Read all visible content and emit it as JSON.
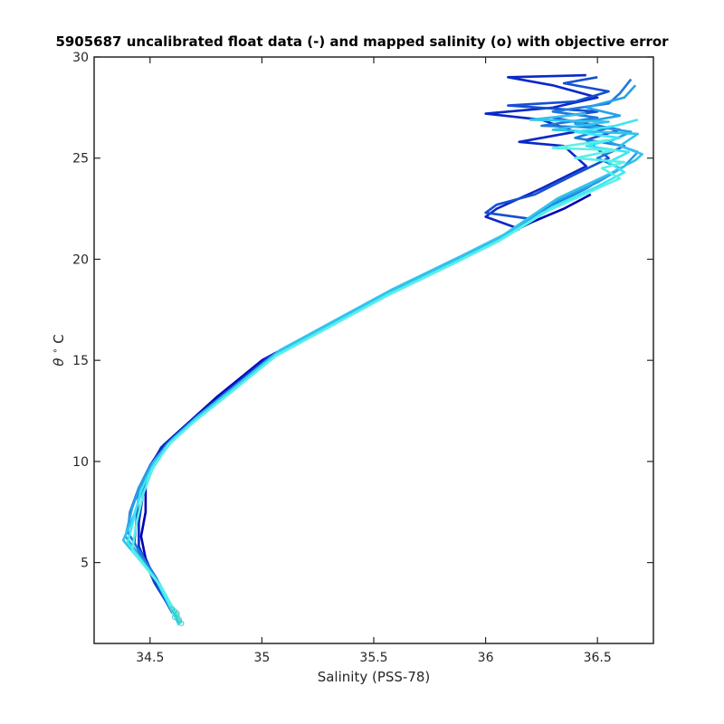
{
  "chart_data": {
    "type": "line",
    "title": "5905687 uncalibrated float data (-) and mapped salinity (o) with objective error",
    "xlabel": "Salinity (PSS-78)",
    "ylabel_symbol": "θ",
    "ylabel_unit": "C",
    "xlim": [
      34.25,
      36.75
    ],
    "ylim": [
      1,
      30
    ],
    "xticks": [
      34.5,
      35,
      35.5,
      36,
      36.5
    ],
    "xtick_labels": [
      "34.5",
      "35",
      "35.5",
      "36",
      "36.5"
    ],
    "yticks": [
      5,
      10,
      15,
      20,
      25,
      30
    ],
    "ytick_labels": [
      "5",
      "10",
      "15",
      "20",
      "25",
      "30"
    ],
    "grid": false,
    "colormap": [
      "#0000c8",
      "#0a3ccd",
      "#1478dc",
      "#1e96e6",
      "#28b4eb",
      "#32d2f0",
      "#3ceef5",
      "#50f0e6"
    ],
    "series": [
      {
        "color": "#0000b4",
        "points": [
          [
            34.63,
            2.0
          ],
          [
            34.55,
            3.5
          ],
          [
            34.48,
            5.2
          ],
          [
            34.46,
            6.3
          ],
          [
            34.48,
            7.5
          ],
          [
            34.48,
            8.7
          ],
          [
            34.5,
            9.8
          ],
          [
            34.56,
            10.8
          ],
          [
            34.65,
            11.7
          ],
          [
            34.8,
            13.2
          ],
          [
            35.0,
            15.0
          ],
          [
            35.25,
            16.5
          ],
          [
            35.5,
            18.0
          ],
          [
            35.8,
            19.6
          ],
          [
            36.0,
            20.7
          ],
          [
            36.2,
            21.8
          ],
          [
            36.35,
            22.5
          ],
          [
            36.47,
            23.2
          ]
        ]
      },
      {
        "color": "#0a28c8",
        "points": [
          [
            34.62,
            2.2
          ],
          [
            34.52,
            4.0
          ],
          [
            34.45,
            5.8
          ],
          [
            34.45,
            7.0
          ],
          [
            34.47,
            8.5
          ],
          [
            34.49,
            9.5
          ],
          [
            34.55,
            10.7
          ],
          [
            34.66,
            11.8
          ],
          [
            34.82,
            13.3
          ],
          [
            35.02,
            15.1
          ],
          [
            35.27,
            16.6
          ],
          [
            35.52,
            18.1
          ],
          [
            35.82,
            19.7
          ],
          [
            36.02,
            20.8
          ],
          [
            36.15,
            21.5
          ],
          [
            36.0,
            22.1
          ],
          [
            36.05,
            22.5
          ],
          [
            36.25,
            23.5
          ],
          [
            36.45,
            24.6
          ],
          [
            36.35,
            25.6
          ],
          [
            36.15,
            25.8
          ],
          [
            36.4,
            26.3
          ],
          [
            36.25,
            26.9
          ],
          [
            36.0,
            27.2
          ],
          [
            36.3,
            27.5
          ],
          [
            36.5,
            28.0
          ],
          [
            36.3,
            28.6
          ],
          [
            36.1,
            29.0
          ],
          [
            36.45,
            29.1
          ]
        ]
      },
      {
        "color": "#1450d2",
        "points": [
          [
            34.6,
            2.5
          ],
          [
            34.5,
            4.5
          ],
          [
            34.43,
            6.0
          ],
          [
            34.44,
            7.2
          ],
          [
            34.45,
            8.5
          ],
          [
            34.5,
            9.6
          ],
          [
            34.57,
            10.8
          ],
          [
            34.68,
            11.9
          ],
          [
            34.84,
            13.4
          ],
          [
            35.04,
            15.2
          ],
          [
            35.29,
            16.7
          ],
          [
            35.54,
            18.2
          ],
          [
            35.84,
            19.8
          ],
          [
            36.04,
            20.9
          ],
          [
            36.2,
            22.0
          ],
          [
            36.0,
            22.3
          ],
          [
            36.05,
            22.7
          ],
          [
            36.22,
            23.2
          ],
          [
            36.4,
            24.2
          ],
          [
            36.55,
            25.0
          ],
          [
            36.45,
            25.9
          ],
          [
            36.6,
            26.4
          ],
          [
            36.3,
            27.0
          ],
          [
            36.5,
            27.3
          ],
          [
            36.1,
            27.6
          ],
          [
            36.4,
            27.8
          ],
          [
            36.55,
            28.3
          ],
          [
            36.35,
            28.7
          ],
          [
            36.5,
            29.0
          ]
        ]
      },
      {
        "color": "#1e78dc",
        "points": [
          [
            34.63,
            2.0
          ],
          [
            34.53,
            4.2
          ],
          [
            34.4,
            6.5
          ],
          [
            34.41,
            7.5
          ],
          [
            34.45,
            8.7
          ],
          [
            34.5,
            9.8
          ],
          [
            34.58,
            10.9
          ],
          [
            34.69,
            12.0
          ],
          [
            34.86,
            13.5
          ],
          [
            35.06,
            15.3
          ],
          [
            35.31,
            16.8
          ],
          [
            35.56,
            18.3
          ],
          [
            35.86,
            19.9
          ],
          [
            36.06,
            21.0
          ],
          [
            36.25,
            22.4
          ],
          [
            36.45,
            23.5
          ],
          [
            36.6,
            24.5
          ],
          [
            36.5,
            25.0
          ],
          [
            36.62,
            25.6
          ],
          [
            36.4,
            26.0
          ],
          [
            36.55,
            26.5
          ],
          [
            36.25,
            26.6
          ],
          [
            36.5,
            27.0
          ],
          [
            36.3,
            27.3
          ],
          [
            36.55,
            27.7
          ],
          [
            36.6,
            28.2
          ],
          [
            36.65,
            28.9
          ]
        ]
      },
      {
        "color": "#28a0e6",
        "points": [
          [
            34.63,
            2.1
          ],
          [
            34.52,
            4.3
          ],
          [
            34.39,
            6.3
          ],
          [
            34.42,
            7.7
          ],
          [
            34.46,
            8.9
          ],
          [
            34.51,
            9.9
          ],
          [
            34.59,
            11.0
          ],
          [
            34.7,
            12.1
          ],
          [
            34.87,
            13.6
          ],
          [
            35.07,
            15.4
          ],
          [
            35.32,
            16.9
          ],
          [
            35.57,
            18.4
          ],
          [
            35.87,
            20.0
          ],
          [
            36.07,
            21.1
          ],
          [
            36.3,
            22.8
          ],
          [
            36.5,
            23.8
          ],
          [
            36.62,
            24.6
          ],
          [
            36.68,
            25.3
          ],
          [
            36.55,
            25.8
          ],
          [
            36.65,
            26.3
          ],
          [
            36.4,
            26.7
          ],
          [
            36.6,
            27.1
          ],
          [
            36.45,
            27.5
          ],
          [
            36.62,
            28.0
          ],
          [
            36.67,
            28.6
          ]
        ]
      },
      {
        "color": "#32c3ee",
        "points": [
          [
            34.64,
            2.0
          ],
          [
            34.54,
            4.0
          ],
          [
            34.38,
            6.1
          ],
          [
            34.43,
            7.4
          ],
          [
            34.47,
            8.8
          ],
          [
            34.52,
            10.0
          ],
          [
            34.6,
            11.1
          ],
          [
            34.71,
            12.2
          ],
          [
            34.88,
            13.7
          ],
          [
            35.08,
            15.5
          ],
          [
            35.33,
            17.0
          ],
          [
            35.58,
            18.5
          ],
          [
            35.88,
            20.1
          ],
          [
            36.08,
            21.2
          ],
          [
            36.32,
            23.0
          ],
          [
            36.55,
            24.2
          ],
          [
            36.67,
            24.9
          ],
          [
            36.7,
            25.2
          ],
          [
            36.6,
            25.6
          ],
          [
            36.68,
            26.2
          ],
          [
            36.3,
            26.4
          ],
          [
            36.55,
            26.8
          ],
          [
            36.2,
            26.9
          ],
          [
            36.45,
            27.2
          ]
        ]
      },
      {
        "color": "#3ce6f5",
        "points": [
          [
            34.63,
            1.9
          ],
          [
            34.53,
            4.1
          ],
          [
            34.4,
            6.0
          ],
          [
            34.43,
            7.3
          ],
          [
            34.46,
            8.6
          ],
          [
            34.51,
            9.7
          ],
          [
            34.59,
            10.9
          ],
          [
            34.7,
            12.0
          ],
          [
            34.87,
            13.5
          ],
          [
            35.07,
            15.3
          ],
          [
            35.32,
            16.8
          ],
          [
            35.57,
            18.3
          ],
          [
            35.87,
            19.9
          ],
          [
            36.07,
            21.0
          ],
          [
            36.3,
            22.6
          ],
          [
            36.5,
            23.6
          ],
          [
            36.62,
            24.3
          ],
          [
            36.55,
            24.8
          ],
          [
            36.64,
            25.3
          ],
          [
            36.45,
            25.6
          ],
          [
            36.6,
            26.0
          ],
          [
            36.4,
            26.3
          ],
          [
            36.58,
            26.6
          ],
          [
            36.68,
            26.9
          ]
        ]
      },
      {
        "color": "#5af0e6",
        "points": [
          [
            34.64,
            2.0
          ],
          [
            34.55,
            3.8
          ],
          [
            34.42,
            5.6
          ],
          [
            34.44,
            7.0
          ],
          [
            34.47,
            8.4
          ],
          [
            34.51,
            9.6
          ],
          [
            34.58,
            10.8
          ],
          [
            34.69,
            11.9
          ],
          [
            34.86,
            13.4
          ],
          [
            35.06,
            15.2
          ],
          [
            35.31,
            16.7
          ],
          [
            35.56,
            18.2
          ],
          [
            35.86,
            19.8
          ],
          [
            36.06,
            20.9
          ],
          [
            36.28,
            22.4
          ],
          [
            36.48,
            23.4
          ],
          [
            36.6,
            24.0
          ],
          [
            36.52,
            24.5
          ],
          [
            36.62,
            24.8
          ],
          [
            36.4,
            25.0
          ],
          [
            36.58,
            25.4
          ],
          [
            36.3,
            25.5
          ],
          [
            36.55,
            25.9
          ]
        ]
      }
    ],
    "mapped_points": [
      [
        34.61,
        2.6
      ],
      [
        34.62,
        2.4
      ],
      [
        34.63,
        2.2
      ],
      [
        34.64,
        2.0
      ],
      [
        34.6,
        2.7
      ],
      [
        34.62,
        2.5
      ],
      [
        34.63,
        2.1
      ],
      [
        34.61,
        2.3
      ]
    ]
  }
}
